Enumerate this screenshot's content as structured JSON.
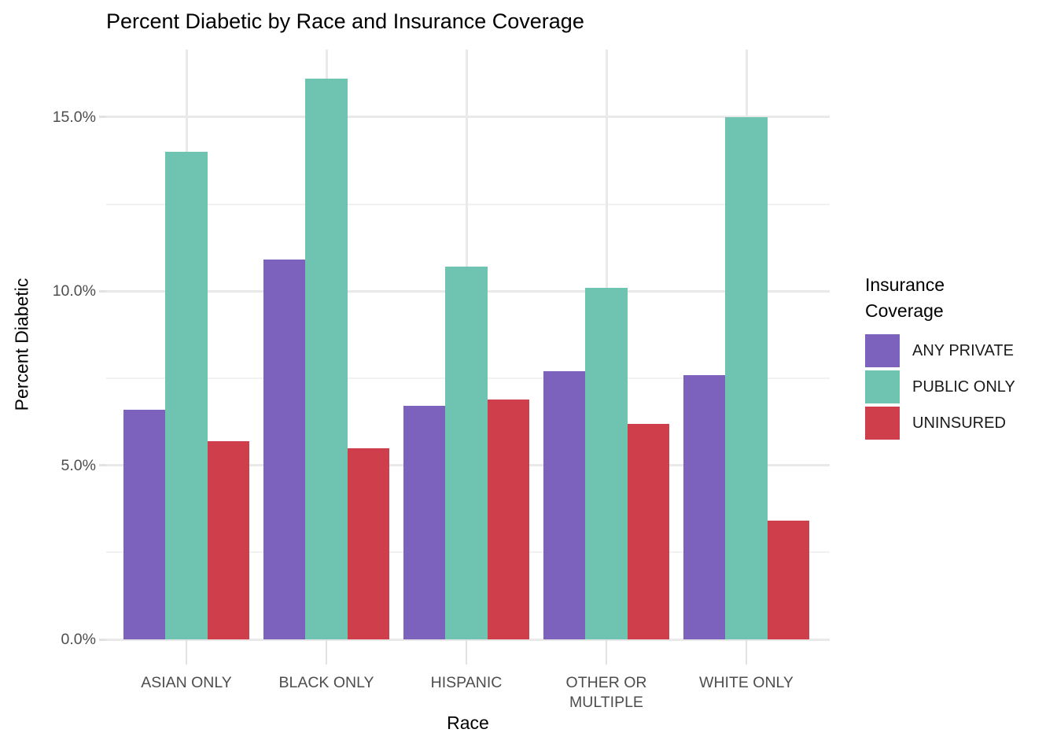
{
  "chart_data": {
    "type": "bar",
    "title": "Percent Diabetic by Race and Insurance Coverage",
    "xlabel": "Race",
    "ylabel": "Percent Diabetic",
    "categories": [
      "ASIAN ONLY",
      "BLACK ONLY",
      "HISPANIC",
      "OTHER OR MULTIPLE",
      "WHITE ONLY"
    ],
    "series": [
      {
        "name": "ANY PRIVATE",
        "color": "#7d62bd",
        "values": [
          6.6,
          10.9,
          6.7,
          7.7,
          7.6
        ]
      },
      {
        "name": "PUBLIC ONLY",
        "color": "#6fc3b1",
        "values": [
          14.0,
          16.1,
          10.7,
          10.1,
          15.0
        ]
      },
      {
        "name": "UNINSURED",
        "color": "#cf3f4b",
        "values": [
          5.7,
          5.5,
          6.9,
          6.2,
          3.4
        ]
      }
    ],
    "legend_title": "Insurance Coverage",
    "legend_position": "right",
    "y_ticks": {
      "values": [
        0,
        5,
        10,
        15
      ],
      "labels": [
        "0.0%",
        "5.0%",
        "10.0%",
        "15.0%"
      ]
    },
    "y_minor_ticks": [
      2.5,
      7.5,
      12.5
    ],
    "ylim": [
      0,
      16.9
    ],
    "grid": "horizontal major+minor, vertical major at category centers",
    "style": {
      "background": "#ffffff",
      "grid_major_color": "#e9e9e9",
      "grid_minor_color": "#f1f1f1",
      "axis_text_color": "#4d4d4d",
      "title_color": "#000000"
    }
  }
}
